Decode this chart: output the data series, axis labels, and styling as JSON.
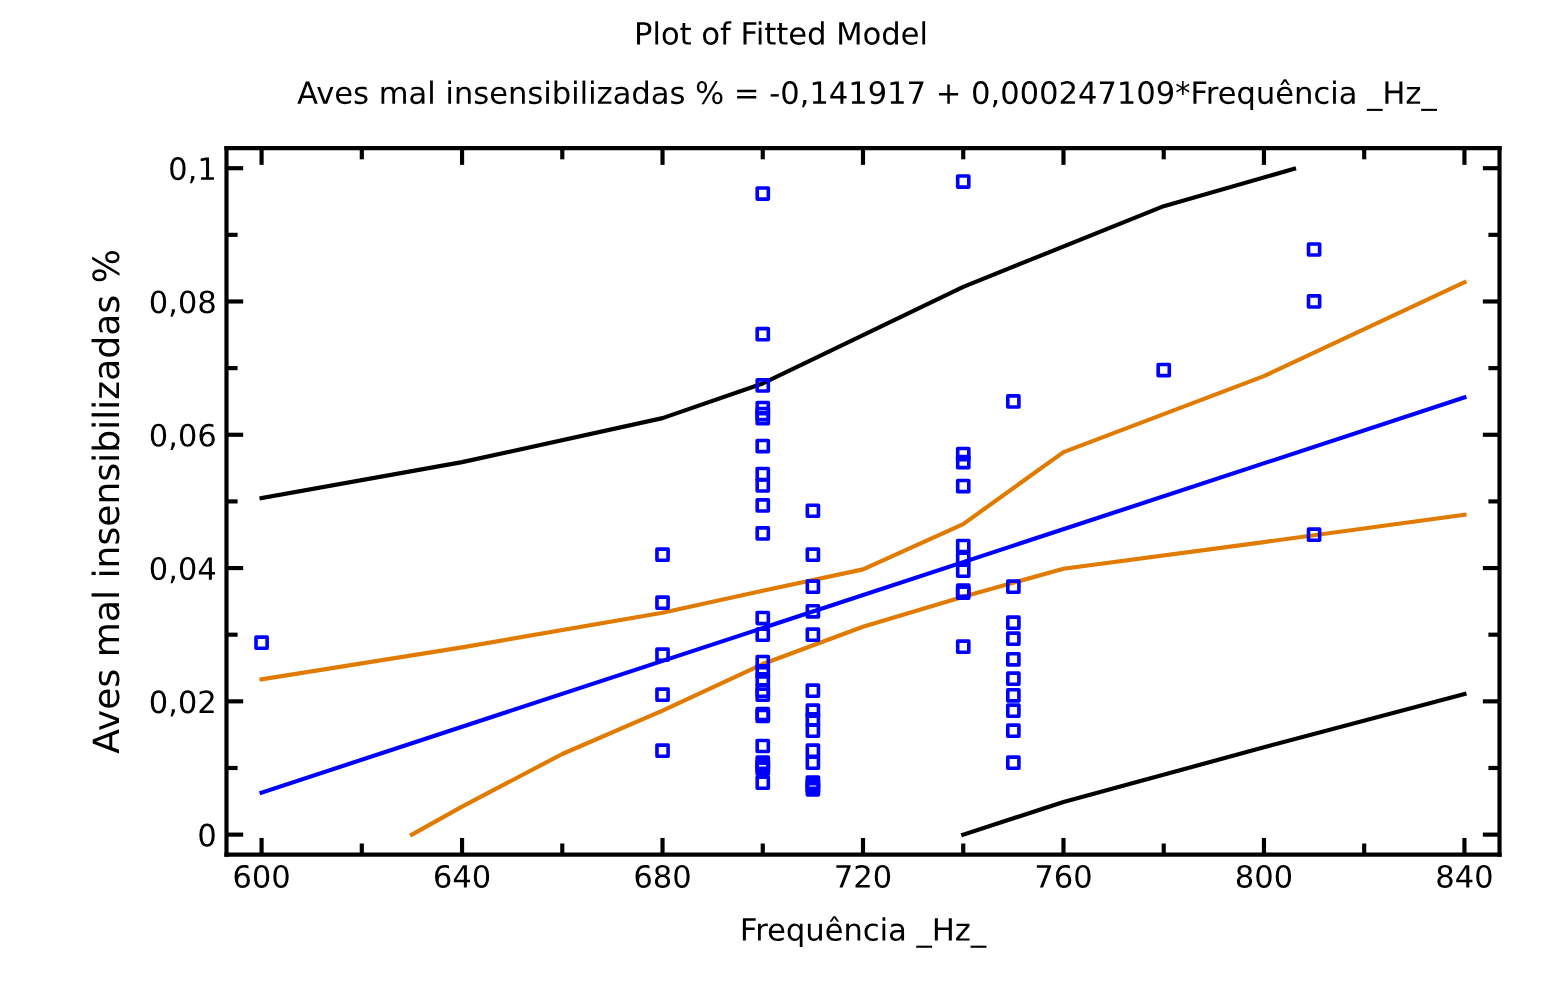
{
  "chart_data": {
    "type": "scatter",
    "title": "Plot of Fitted Model",
    "subtitle": "Aves mal insensibilizadas % = -0,141917 + 0,000247109*Frequência _Hz_",
    "xlabel": "Frequência _Hz_",
    "ylabel": "Aves mal insensibilizadas %",
    "xlim": [
      593,
      847
    ],
    "ylim": [
      -0.003,
      0.103
    ],
    "xticks": [
      600,
      640,
      680,
      720,
      760,
      800,
      840
    ],
    "yticks": [
      0,
      {
        "value": 0.02,
        "label": "0,02"
      },
      {
        "value": 0.04,
        "label": "0,04"
      },
      {
        "value": 0.06,
        "label": "0,06"
      },
      {
        "value": 0.08,
        "label": "0,08"
      },
      {
        "value": 0.1,
        "label": "0,1"
      }
    ],
    "grid": false,
    "legend": false,
    "series": [
      {
        "marker": "square",
        "color": "#0000ff",
        "x": [
          600,
          680,
          680,
          680,
          680,
          680,
          700,
          700,
          700,
          700,
          700,
          700,
          700,
          700,
          700,
          700,
          700,
          700,
          700,
          700,
          700,
          700,
          700,
          700,
          700,
          700,
          700,
          700,
          700,
          700,
          700,
          710,
          710,
          710,
          710,
          710,
          710,
          710,
          710,
          710,
          710,
          710,
          710,
          710,
          710,
          740,
          740,
          740,
          740,
          740,
          740,
          740,
          740,
          740,
          740,
          750,
          750,
          750,
          750,
          750,
          750,
          750,
          750,
          750,
          750,
          780,
          810,
          810,
          810
        ],
        "values": [
          0.0288,
          0.042,
          0.0348,
          0.027,
          0.021,
          0.0126,
          0.0962,
          0.0751,
          0.0674,
          0.064,
          0.0631,
          0.0625,
          0.0583,
          0.0541,
          0.0524,
          0.0494,
          0.0452,
          0.0325,
          0.03,
          0.0259,
          0.0245,
          0.0233,
          0.0216,
          0.021,
          0.0181,
          0.0178,
          0.0133,
          0.0108,
          0.0103,
          0.0099,
          0.0078,
          0.0486,
          0.042,
          0.0372,
          0.0335,
          0.03,
          0.0216,
          0.0186,
          0.0173,
          0.0156,
          0.0126,
          0.0108,
          0.0078,
          0.0073,
          0.0068,
          0.098,
          0.0571,
          0.0559,
          0.0523,
          0.0433,
          0.0414,
          0.0396,
          0.0366,
          0.0363,
          0.0282,
          0.065,
          0.0372,
          0.0318,
          0.0294,
          0.0263,
          0.0234,
          0.0209,
          0.0186,
          0.0156,
          0.0108,
          0.0697,
          0.0878,
          0.08,
          0.045
        ]
      },
      {
        "type": "line",
        "color": "#0000ff",
        "x": [
          600,
          840
        ],
        "values": [
          0.0063,
          0.0656
        ]
      },
      {
        "type": "line",
        "color": "#e07b00",
        "x": [
          600,
          640,
          680,
          700,
          720,
          740,
          760,
          800,
          840
        ],
        "values": [
          0.0233,
          0.0281,
          0.0333,
          0.0366,
          0.0398,
          0.0466,
          0.0574,
          0.0688,
          0.0829
        ]
      },
      {
        "type": "line",
        "color": "#e07b00",
        "x": [
          630,
          640,
          660,
          680,
          700,
          720,
          740,
          760,
          800,
          840
        ],
        "values": [
          0.0,
          0.0042,
          0.0121,
          0.0186,
          0.0256,
          0.0312,
          0.0357,
          0.0399,
          0.0439,
          0.048
        ]
      },
      {
        "type": "line",
        "color": "#000000",
        "x": [
          600,
          640,
          680,
          700,
          740,
          780,
          806
        ],
        "values": [
          0.0505,
          0.0559,
          0.0625,
          0.0677,
          0.0822,
          0.0943,
          0.0999
        ]
      },
      {
        "type": "line",
        "color": "#000000",
        "x": [
          740,
          760,
          800,
          840
        ],
        "values": [
          0.0,
          0.0049,
          0.0131,
          0.0211
        ]
      }
    ]
  }
}
